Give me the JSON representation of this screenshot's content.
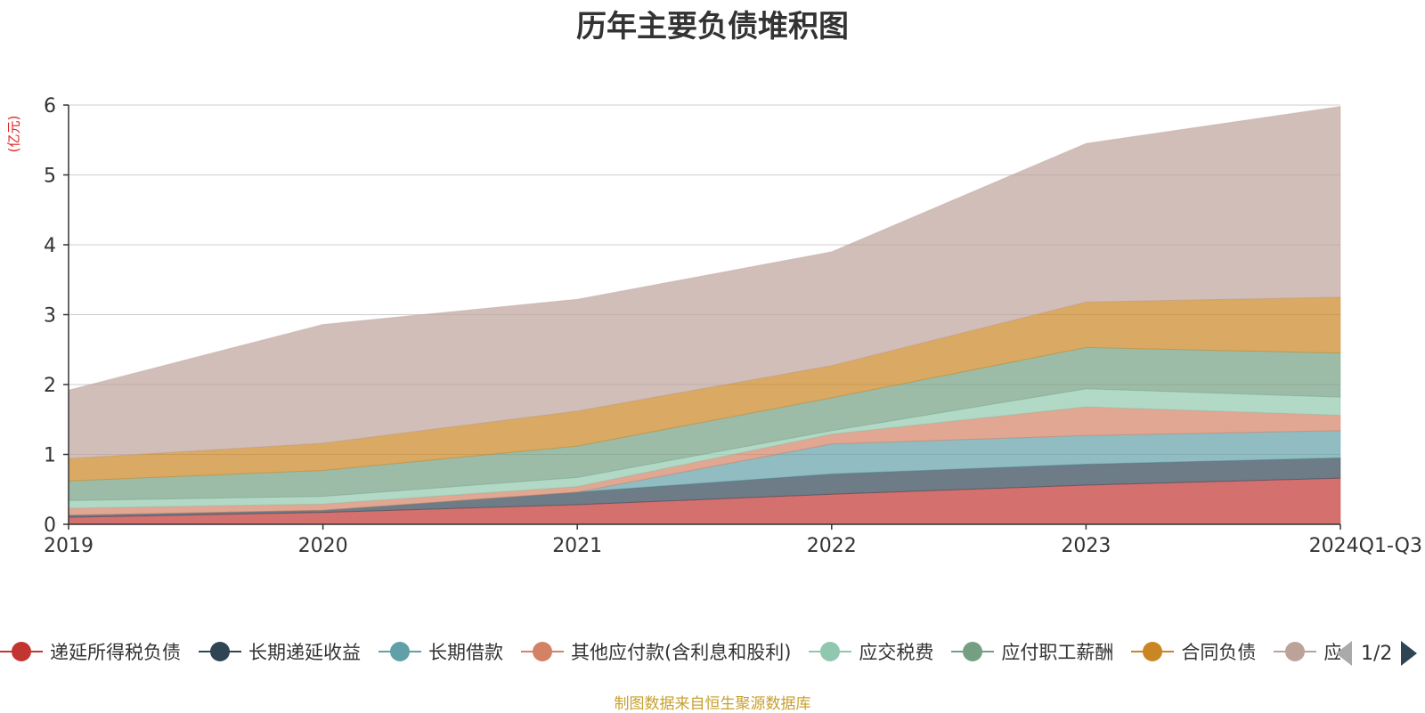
{
  "chart_data": {
    "type": "area",
    "stacked": true,
    "title": "历年主要负债堆积图",
    "ylabel": "(亿元)",
    "ylim": [
      0,
      6
    ],
    "yticks": [
      "0",
      "1",
      "2",
      "3",
      "4",
      "5",
      "6"
    ],
    "categories": [
      "2019",
      "2020",
      "2021",
      "2022",
      "2023",
      "2024Q1-Q3"
    ],
    "series": [
      {
        "name": "递延所得税负债",
        "color": "#c23531",
        "values": [
          0.1,
          0.17,
          0.28,
          0.43,
          0.56,
          0.66
        ]
      },
      {
        "name": "长期递延收益",
        "color": "#2f4554",
        "values": [
          0.03,
          0.03,
          0.18,
          0.29,
          0.3,
          0.29
        ]
      },
      {
        "name": "长期借款",
        "color": "#61a0a8",
        "values": [
          0.0,
          0.0,
          0.0,
          0.43,
          0.41,
          0.39
        ]
      },
      {
        "name": "其他应付款(含利息和股利)",
        "color": "#d48265",
        "values": [
          0.1,
          0.09,
          0.08,
          0.14,
          0.41,
          0.22
        ]
      },
      {
        "name": "应交税费",
        "color": "#91c7ae",
        "values": [
          0.11,
          0.11,
          0.13,
          0.05,
          0.26,
          0.26
        ]
      },
      {
        "name": "应付职工薪酬",
        "color": "#749f83",
        "values": [
          0.28,
          0.37,
          0.45,
          0.47,
          0.59,
          0.63
        ]
      },
      {
        "name": "合同负债",
        "color": "#ca8622",
        "values": [
          0.32,
          0.39,
          0.5,
          0.46,
          0.65,
          0.8
        ]
      },
      {
        "name": "应付账款",
        "color": "#bda29a",
        "values": [
          0.98,
          1.7,
          1.6,
          1.63,
          2.27,
          2.73
        ]
      }
    ]
  },
  "legend": {
    "page": "1/2"
  },
  "footer": {
    "source": "制图数据来自恒生聚源数据库"
  }
}
